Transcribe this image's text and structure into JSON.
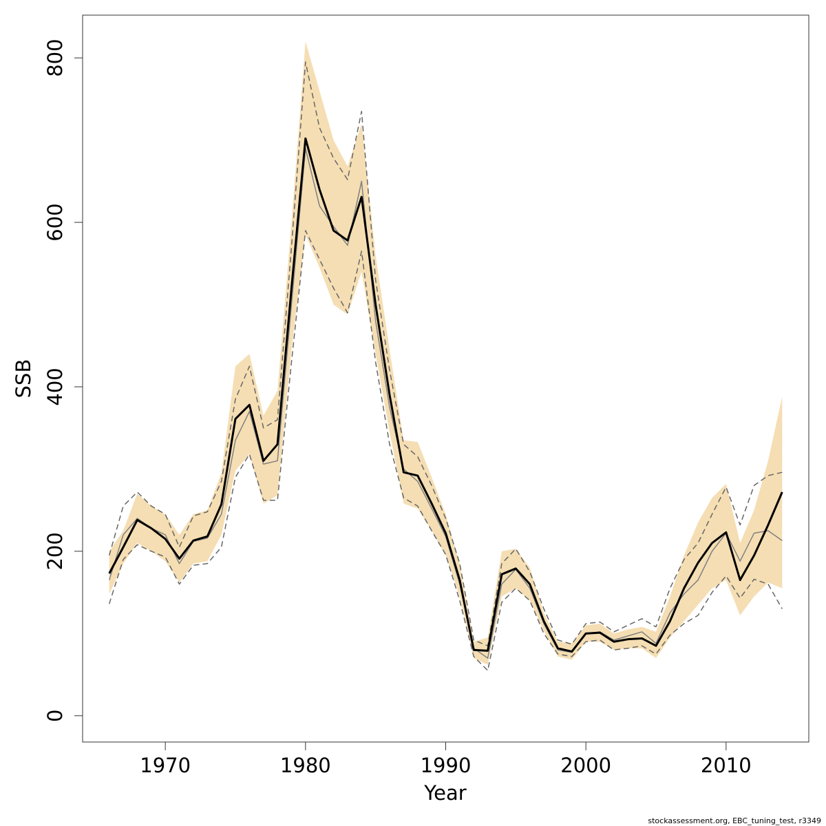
{
  "chart_data": {
    "type": "line",
    "x_label": "Year",
    "y_label": "SSB",
    "footnote": "stockassessment.org, EBC_tuning_test, r3349",
    "x": [
      1966,
      1967,
      1968,
      1969,
      1970,
      1971,
      1972,
      1973,
      1974,
      1975,
      1976,
      1977,
      1978,
      1979,
      1980,
      1981,
      1982,
      1983,
      1984,
      1985,
      1986,
      1987,
      1988,
      1989,
      1990,
      1991,
      1992,
      1993,
      1994,
      1995,
      1996,
      1997,
      1998,
      1999,
      2000,
      2001,
      2002,
      2003,
      2004,
      2005,
      2006,
      2007,
      2008,
      2009,
      2010,
      2011,
      2012,
      2013,
      2014
    ],
    "band": {
      "color": "#f5deb3",
      "upper": [
        200,
        225,
        270,
        255,
        245,
        220,
        245,
        250,
        295,
        425,
        440,
        365,
        395,
        600,
        820,
        760,
        700,
        668,
        720,
        560,
        445,
        335,
        333,
        290,
        245,
        185,
        90,
        95,
        200,
        203,
        180,
        125,
        90,
        88,
        110,
        112,
        100,
        105,
        108,
        102,
        145,
        195,
        235,
        265,
        282,
        210,
        250,
        310,
        388
      ],
      "lower": [
        148,
        185,
        210,
        200,
        188,
        162,
        185,
        188,
        220,
        298,
        318,
        258,
        268,
        445,
        585,
        545,
        500,
        488,
        540,
        440,
        345,
        258,
        252,
        225,
        195,
        145,
        70,
        62,
        145,
        155,
        140,
        103,
        72,
        68,
        90,
        90,
        80,
        82,
        82,
        70,
        95,
        115,
        135,
        155,
        165,
        122,
        145,
        162,
        155
      ]
    },
    "series": [
      {
        "color": "#666666",
        "style": "dashed",
        "width": 1.5,
        "values": [
          195,
          255,
          272,
          255,
          245,
          205,
          243,
          248,
          285,
          385,
          425,
          350,
          360,
          570,
          795,
          715,
          678,
          652,
          735,
          530,
          420,
          330,
          315,
          280,
          240,
          185,
          92,
          85,
          185,
          203,
          175,
          130,
          92,
          87,
          112,
          114,
          102,
          110,
          118,
          108,
          155,
          190,
          210,
          245,
          278,
          232,
          280,
          292,
          296
        ]
      },
      {
        "color": "#666666",
        "style": "dashed",
        "width": 1.5,
        "values": [
          136,
          190,
          208,
          200,
          193,
          160,
          183,
          185,
          205,
          290,
          318,
          262,
          262,
          430,
          590,
          555,
          520,
          490,
          565,
          430,
          330,
          265,
          255,
          225,
          196,
          140,
          72,
          55,
          138,
          155,
          140,
          100,
          75,
          72,
          90,
          92,
          80,
          82,
          85,
          75,
          98,
          112,
          122,
          150,
          170,
          143,
          166,
          160,
          130
        ]
      },
      {
        "color": "#808080",
        "style": "solid",
        "width": 1.5,
        "values": [
          165,
          220,
          240,
          228,
          220,
          185,
          212,
          216,
          245,
          335,
          370,
          306,
          310,
          500,
          690,
          620,
          595,
          572,
          650,
          480,
          375,
          300,
          285,
          252,
          218,
          160,
          82,
          70,
          160,
          178,
          155,
          112,
          80,
          77,
          100,
          102,
          92,
          97,
          102,
          88,
          125,
          148,
          165,
          200,
          222,
          188,
          222,
          225,
          213
        ]
      },
      {
        "color": "#000000",
        "style": "solid",
        "width": 3,
        "values": [
          173,
          205,
          238,
          228,
          215,
          191,
          213,
          218,
          257,
          361,
          378,
          310,
          330,
          520,
          702,
          640,
          590,
          578,
          631,
          500,
          390,
          296,
          292,
          258,
          222,
          165,
          80,
          79,
          172,
          179,
          160,
          115,
          82,
          78,
          100,
          101,
          90,
          93,
          94,
          85,
          115,
          155,
          186,
          210,
          223,
          165,
          195,
          232,
          272
        ]
      }
    ],
    "xlim": [
      1964.1,
      2015.9
    ],
    "ylim": [
      -32,
      852
    ],
    "xticks": [
      1970,
      1980,
      1990,
      2000,
      2010
    ],
    "yticks": [
      0,
      200,
      400,
      600,
      800
    ]
  }
}
